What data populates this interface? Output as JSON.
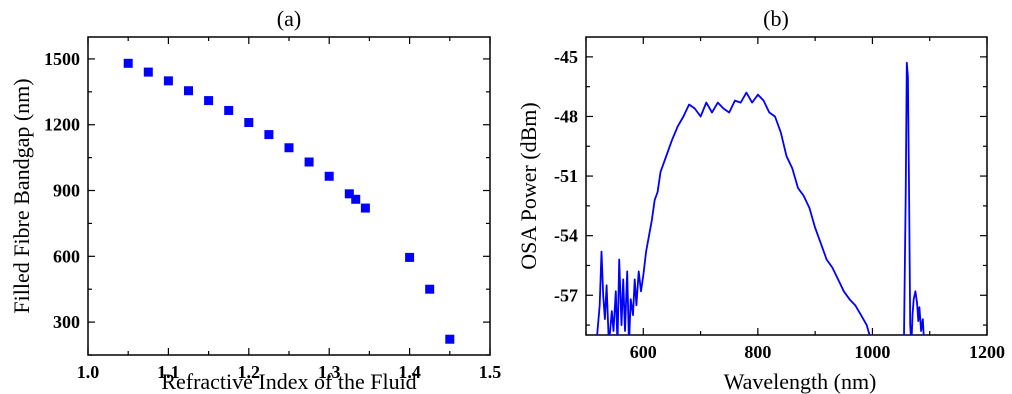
{
  "colors": {
    "series": "#0000ff",
    "axis": "#000000",
    "background": "#ffffff"
  },
  "chart_data": [
    {
      "type": "scatter",
      "panel_label": "(a)",
      "xlabel": "Refractive Index of the Fluid",
      "ylabel": "Filled Fibre Bandgap (nm)",
      "xlim": [
        1.0,
        1.5
      ],
      "ylim": [
        150,
        1600
      ],
      "xticks": [
        1.0,
        1.1,
        1.2,
        1.3,
        1.4,
        1.5
      ],
      "xtick_labels": [
        "1.0",
        "1.1",
        "1.2",
        "1.3",
        "1.4",
        "1.5"
      ],
      "yticks": [
        300,
        600,
        900,
        1200,
        1500
      ],
      "ytick_labels": [
        "300",
        "600",
        "900",
        "1200",
        "1500"
      ],
      "grid": false,
      "marker": "square",
      "series": [
        {
          "x": [
            1.05,
            1.075,
            1.1,
            1.125,
            1.15,
            1.175,
            1.2,
            1.225,
            1.25,
            1.275,
            1.3,
            1.325,
            1.333,
            1.345,
            1.4,
            1.425,
            1.45
          ],
          "y": [
            1480,
            1440,
            1400,
            1355,
            1310,
            1265,
            1210,
            1155,
            1095,
            1030,
            965,
            885,
            860,
            820,
            595,
            450,
            222
          ]
        }
      ]
    },
    {
      "type": "line",
      "panel_label": "(b)",
      "xlabel": "Wavelength (nm)",
      "ylabel": "OSA Power (dBm)",
      "xlim": [
        500,
        1200
      ],
      "ylim": [
        -59,
        -44
      ],
      "xticks": [
        600,
        800,
        1000,
        1200
      ],
      "xtick_labels": [
        "600",
        "800",
        "1000",
        "1200"
      ],
      "yticks": [
        -45,
        -48,
        -51,
        -54,
        -57
      ],
      "ytick_labels": [
        "-45",
        "-48",
        "-51",
        "-54",
        "-57"
      ],
      "grid": false,
      "series": [
        {
          "x": [
            518,
            524,
            527,
            530,
            533,
            536,
            540,
            545,
            548,
            552,
            555,
            558,
            562,
            565,
            568,
            572,
            575,
            578,
            582,
            585,
            588,
            592,
            596,
            600,
            605,
            610,
            615,
            620,
            625,
            630,
            640,
            650,
            660,
            670,
            680,
            690,
            700,
            710,
            720,
            730,
            740,
            750,
            760,
            770,
            780,
            790,
            800,
            810,
            820,
            830,
            840,
            850,
            860,
            870,
            880,
            890,
            900,
            910,
            920,
            930,
            940,
            950,
            960,
            970,
            980,
            990,
            1000,
            1005,
            1010,
            1020,
            1030,
            1040,
            1050,
            1055,
            1058,
            1060,
            1062,
            1064,
            1066,
            1068,
            1070,
            1072,
            1075,
            1078,
            1080,
            1082,
            1085,
            1088,
            1090,
            1092,
            1095
          ],
          "y": [
            -59.5,
            -57.5,
            -54.8,
            -57.0,
            -58.2,
            -56.5,
            -59.5,
            -57.8,
            -58.8,
            -56.8,
            -59.5,
            -55.2,
            -58.5,
            -56.2,
            -58.8,
            -55.8,
            -59.5,
            -57.2,
            -58.0,
            -56.2,
            -57.5,
            -55.8,
            -56.8,
            -56.0,
            -54.8,
            -54.0,
            -53.2,
            -52.2,
            -51.8,
            -50.8,
            -50.0,
            -49.2,
            -48.5,
            -48.0,
            -47.4,
            -47.6,
            -48.0,
            -47.3,
            -47.8,
            -47.3,
            -47.6,
            -47.8,
            -47.2,
            -47.3,
            -46.8,
            -47.3,
            -46.9,
            -47.2,
            -47.8,
            -48.0,
            -48.8,
            -50.0,
            -50.6,
            -51.6,
            -52.0,
            -52.6,
            -53.6,
            -54.4,
            -55.2,
            -55.6,
            -56.2,
            -56.8,
            -57.2,
            -57.5,
            -58.0,
            -58.5,
            -59.5,
            -59.5,
            -59.5,
            -59.5,
            -59.5,
            -59.5,
            -59.5,
            -59.5,
            -52.0,
            -45.3,
            -46.0,
            -52.0,
            -58.5,
            -59.5,
            -58.0,
            -57.2,
            -56.8,
            -57.4,
            -58.3,
            -57.6,
            -58.8,
            -58.2,
            -59.3,
            -59.1,
            -59.5
          ]
        }
      ]
    }
  ]
}
